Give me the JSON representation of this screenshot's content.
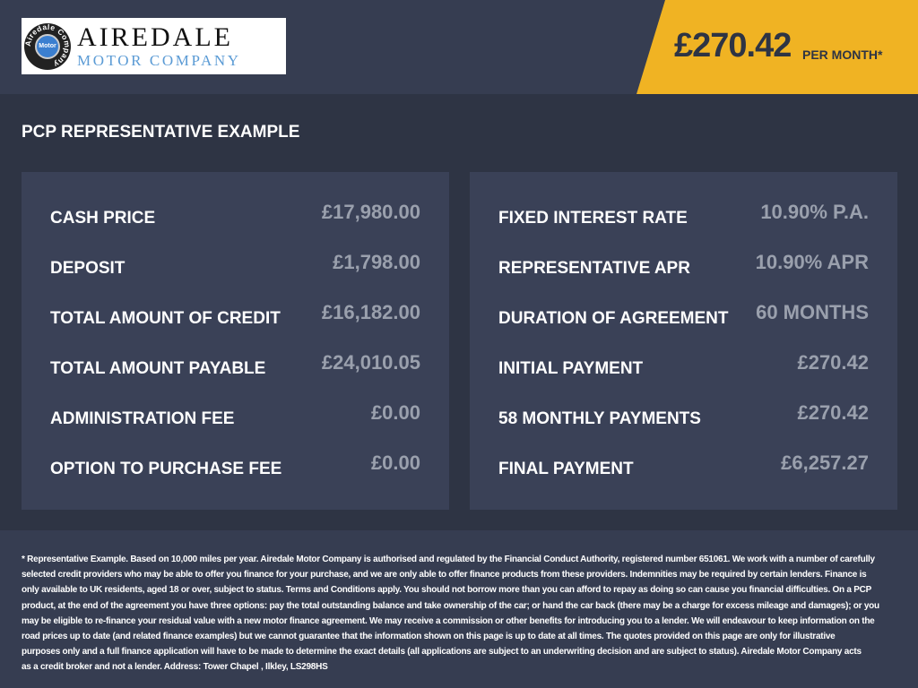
{
  "header": {
    "logo_text": "AIREDALE",
    "logo_subtext": "MOTOR COMPANY",
    "badge_text": "Motor",
    "badge_ring": "Airedale Company",
    "price": "£270.42",
    "per_month": "PER MONTH*"
  },
  "title": "PCP REPRESENTATIVE EXAMPLE",
  "left": [
    {
      "label": "CASH PRICE",
      "value": "£17,980.00"
    },
    {
      "label": "DEPOSIT",
      "value": "£1,798.00"
    },
    {
      "label": "TOTAL AMOUNT OF CREDIT",
      "value": "£16,182.00"
    },
    {
      "label": "TOTAL AMOUNT PAYABLE",
      "value": "£24,010.05"
    },
    {
      "label": "ADMINISTRATION FEE",
      "value": "£0.00"
    },
    {
      "label": "OPTION TO PURCHASE FEE",
      "value": "£0.00"
    }
  ],
  "right": [
    {
      "label": "FIXED INTEREST RATE",
      "value": "10.90% P.A."
    },
    {
      "label": "REPRESENTATIVE APR",
      "value": "10.90% APR"
    },
    {
      "label": "DURATION OF AGREEMENT",
      "value": "60 MONTHS"
    },
    {
      "label": "INITIAL PAYMENT",
      "value": "£270.42"
    },
    {
      "label": "58 MONTHLY PAYMENTS",
      "value": "£270.42"
    },
    {
      "label": "FINAL PAYMENT",
      "value": "£6,257.27"
    }
  ],
  "disclaimer": [
    "* Representative Example. Based on 10,000 miles per year. Airedale Motor Company is authorised and regulated by the Financial Conduct Authority, registered number 651061. We work with a number of carefully",
    "selected credit providers who may be able to offer you finance for your purchase, and we are only able to offer finance products from these providers. Indemnities may be required by certain lenders. Finance is",
    "only available to UK residents, aged 18 or over, subject to status. Terms and Conditions apply. You should not borrow more than you can afford to repay as doing so can cause you financial difficulties. On a PCP",
    "product, at the end of the agreement you have three options: pay the total outstanding balance and take ownership of the car; or hand the car back (there may be a charge for excess mileage and damages); or you",
    "may be eligible to re-finance your residual value with a new motor finance agreement. We may receive a commission or other benefits for introducing you to a lender. We will endeavour to keep information on the",
    "road prices up to date (and related finance examples) but we cannot guarantee that the information shown on this page is up to date at all times. The quotes provided on this page are only for illustrative",
    "purposes only and a full finance application will have to be made to determine the exact details (all applications are subject to an underwriting decision and are subject to status). Airedale Motor Company acts",
    "as a credit broker and not a lender. Address: Tower Chapel , Ilkley, LS298HS"
  ]
}
